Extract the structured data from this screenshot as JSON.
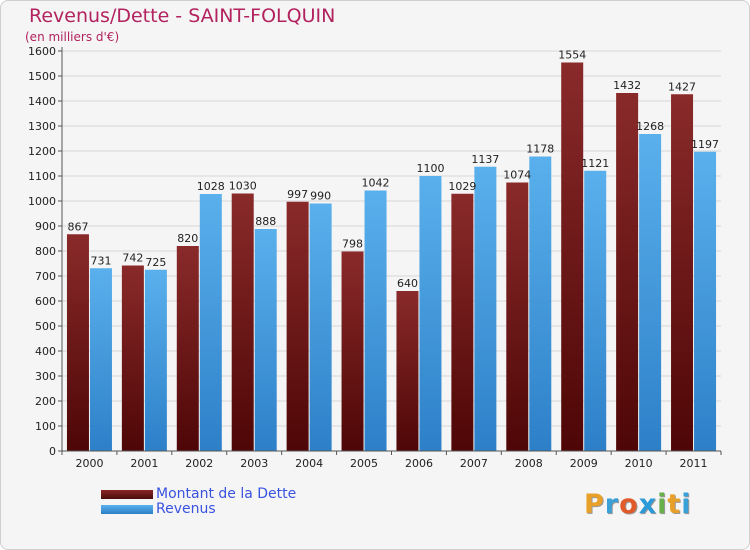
{
  "chart_data": {
    "type": "bar",
    "title": "Revenus/Dette - SAINT-FOLQUIN",
    "subtitle": "(en milliers d'€)",
    "xlabel": "",
    "ylabel": "",
    "ylim": [
      0,
      1600
    ],
    "yticks": [
      0,
      100,
      200,
      300,
      400,
      500,
      600,
      700,
      800,
      900,
      1000,
      1100,
      1200,
      1300,
      1400,
      1500,
      1600
    ],
    "grid": true,
    "legend_position": "bottom-left",
    "categories": [
      "2000",
      "2001",
      "2002",
      "2003",
      "2004",
      "2005",
      "2006",
      "2007",
      "2008",
      "2009",
      "2010",
      "2011"
    ],
    "series": [
      {
        "name": "Montant de la Dette",
        "color": "#7a1d1d",
        "values": [
          867,
          742,
          820,
          1030,
          997,
          798,
          640,
          1029,
          1074,
          1554,
          1432,
          1427
        ],
        "labels": [
          "867",
          "742",
          "820",
          "1030",
          "997",
          "798",
          "640",
          "1029",
          "1074",
          "1554",
          "1432",
          "1427"
        ]
      },
      {
        "name": "Revenus",
        "color": "#4aa3e8",
        "values": [
          731,
          725,
          1028,
          888,
          990,
          1042,
          1100,
          1137,
          1178,
          1121,
          1268,
          1197
        ],
        "labels": [
          "731",
          "725",
          "1028",
          "888",
          "990",
          "1042",
          "1100",
          "1137",
          "1178",
          "1121",
          "1268",
          "1197"
        ]
      }
    ]
  },
  "legend": {
    "debt_label": "Montant de la Dette",
    "revenue_label": "Revenus"
  },
  "logo": {
    "text": "Proxiti",
    "letters": [
      "P",
      "r",
      "o",
      "x",
      "i",
      "t",
      "i"
    ],
    "colors": [
      "#e8a028",
      "#3aa0d8",
      "#e05a2a",
      "#2a9ad8",
      "#6ab04a",
      "#e8a028",
      "#3aa0d8"
    ]
  }
}
